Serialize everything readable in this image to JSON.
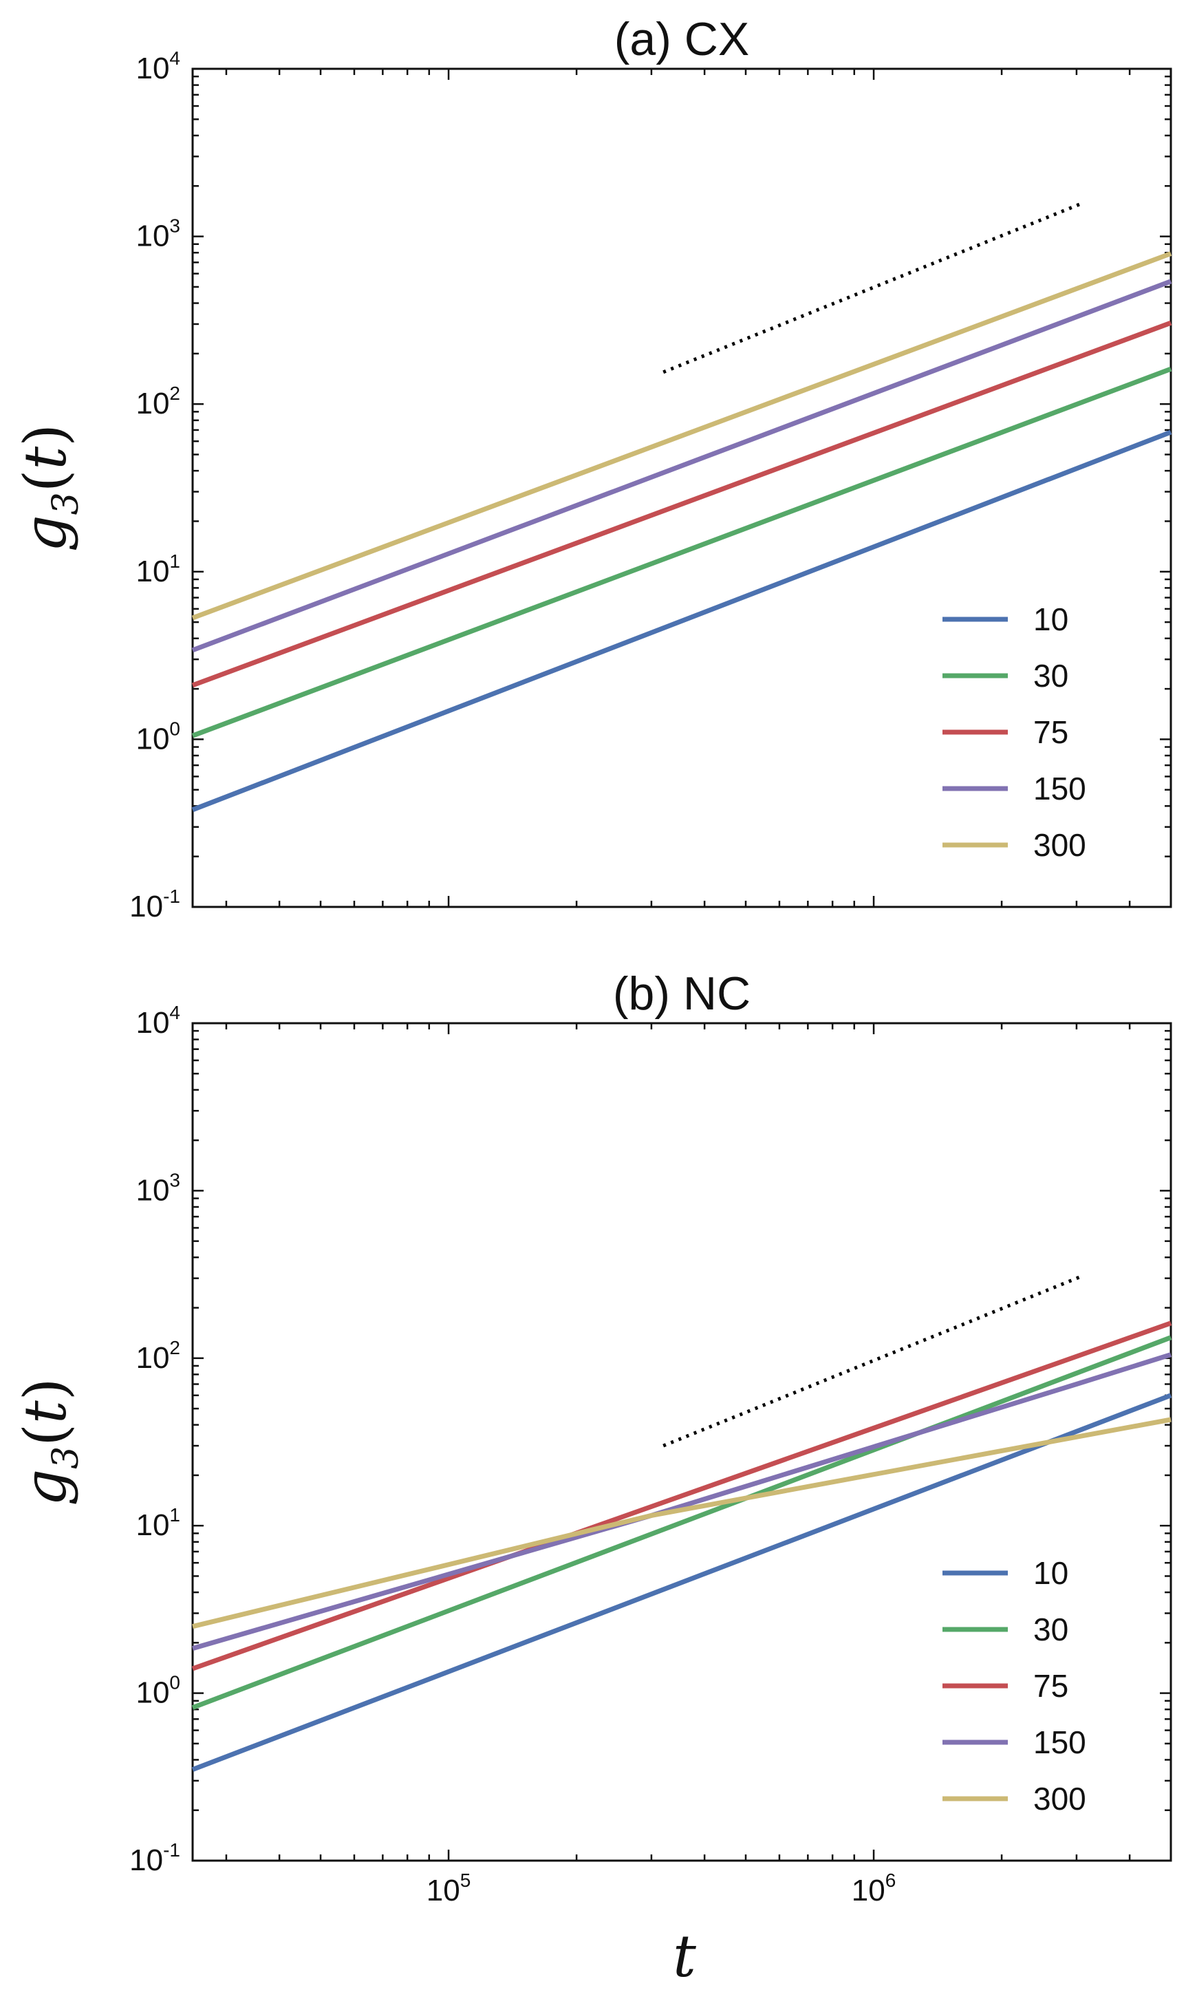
{
  "chart_data": [
    {
      "type": "line",
      "title": "(a) CX",
      "xlabel": "t",
      "ylabel": "g3(t)",
      "xscale": "log",
      "yscale": "log",
      "xlim": [
        25000,
        5000000
      ],
      "ylim": [
        0.1,
        10000
      ],
      "x_ticks": [
        {
          "base": "10",
          "exp": "5",
          "value": 100000
        },
        {
          "base": "10",
          "exp": "6",
          "value": 1000000
        }
      ],
      "y_ticks": [
        {
          "base": "10",
          "exp": "-1",
          "value": 0.1
        },
        {
          "base": "10",
          "exp": "0",
          "value": 1
        },
        {
          "base": "10",
          "exp": "1",
          "value": 10
        },
        {
          "base": "10",
          "exp": "2",
          "value": 100
        },
        {
          "base": "10",
          "exp": "3",
          "value": 1000
        },
        {
          "base": "10",
          "exp": "4",
          "value": 10000
        }
      ],
      "legend_position": "lower-right",
      "series": [
        {
          "name": "10",
          "color": "#4C72B0",
          "x": [
            25000,
            5000000
          ],
          "y": [
            0.38,
            68
          ]
        },
        {
          "name": "30",
          "color": "#55A868",
          "x": [
            25000,
            5000000
          ],
          "y": [
            1.05,
            162
          ]
        },
        {
          "name": "75",
          "color": "#C44E52",
          "x": [
            25000,
            5000000
          ],
          "y": [
            2.1,
            305
          ]
        },
        {
          "name": "150",
          "color": "#8172B2",
          "x": [
            25000,
            5000000
          ],
          "y": [
            3.4,
            540
          ]
        },
        {
          "name": "300",
          "color": "#CCB974",
          "x": [
            25000,
            5000000
          ],
          "y": [
            5.3,
            790
          ]
        }
      ],
      "reference_line": {
        "style": "dotted",
        "color": "#000000",
        "x": [
          320000,
          3100000
        ],
        "y": [
          155,
          1580
        ]
      }
    },
    {
      "type": "line",
      "title": "(b) NC",
      "xlabel": "t",
      "ylabel": "g3(t)",
      "xscale": "log",
      "yscale": "log",
      "xlim": [
        25000,
        5000000
      ],
      "ylim": [
        0.1,
        10000
      ],
      "x_ticks": [
        {
          "base": "10",
          "exp": "5",
          "value": 100000
        },
        {
          "base": "10",
          "exp": "6",
          "value": 1000000
        }
      ],
      "y_ticks": [
        {
          "base": "10",
          "exp": "-1",
          "value": 0.1
        },
        {
          "base": "10",
          "exp": "0",
          "value": 1
        },
        {
          "base": "10",
          "exp": "1",
          "value": 10
        },
        {
          "base": "10",
          "exp": "2",
          "value": 100
        },
        {
          "base": "10",
          "exp": "3",
          "value": 1000
        },
        {
          "base": "10",
          "exp": "4",
          "value": 10000
        }
      ],
      "legend_position": "lower-right",
      "series": [
        {
          "name": "10",
          "color": "#4C72B0",
          "x": [
            25000,
            5000000
          ],
          "y": [
            0.35,
            60
          ]
        },
        {
          "name": "30",
          "color": "#55A868",
          "x": [
            25000,
            5000000
          ],
          "y": [
            0.82,
            133
          ]
        },
        {
          "name": "75",
          "color": "#C44E52",
          "x": [
            25000,
            5000000
          ],
          "y": [
            1.4,
            162
          ]
        },
        {
          "name": "150",
          "color": "#8172B2",
          "x": [
            25000,
            300000,
            3000000,
            5000000
          ],
          "y": [
            1.85,
            11.5,
            70,
            105
          ]
        },
        {
          "name": "300",
          "color": "#CCB974",
          "x": [
            25000,
            300000,
            5000000
          ],
          "y": [
            2.5,
            11.5,
            43
          ]
        }
      ],
      "reference_line": {
        "style": "dotted",
        "color": "#000000",
        "x": [
          320000,
          3100000
        ],
        "y": [
          30,
          310
        ]
      }
    }
  ]
}
